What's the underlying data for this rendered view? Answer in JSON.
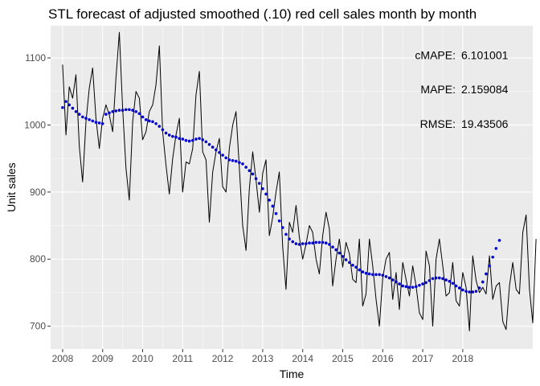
{
  "chart_data": {
    "type": "line",
    "title": "STL forecast of adjusted smoothed (.10) red cell sales month by month",
    "xlabel": "Time",
    "ylabel": "Unit sales",
    "xlim": [
      2007.7,
      2019.75
    ],
    "ylim": [
      666,
      1148
    ],
    "x_ticks": [
      2008,
      2009,
      2010,
      2011,
      2012,
      2013,
      2014,
      2015,
      2016,
      2017,
      2018
    ],
    "y_ticks": [
      700,
      800,
      900,
      1000,
      1100
    ],
    "grid": true,
    "background": "#EBEBEB",
    "annotations": [
      {
        "label": "cMAPE:",
        "value": "6.101001"
      },
      {
        "label": "MAPE:",
        "value": "2.159084"
      },
      {
        "label": "RMSE:",
        "value": "19.43506"
      }
    ],
    "series": [
      {
        "kind": "actual_line",
        "color": "#000000",
        "start": 2008,
        "step": 0.0833333,
        "values": [
          1090,
          985,
          1057,
          1040,
          1075,
          968,
          915,
          1005,
          1055,
          1085,
          1010,
          965,
          1010,
          1030,
          1015,
          990,
          1070,
          1138,
          1025,
          935,
          888,
          1005,
          1050,
          1040,
          978,
          990,
          1020,
          1030,
          1060,
          1118,
          990,
          940,
          897,
          950,
          985,
          1010,
          900,
          945,
          942,
          965,
          1045,
          1080,
          960,
          948,
          855,
          930,
          960,
          980,
          908,
          900,
          965,
          1000,
          1020,
          935,
          850,
          813,
          905,
          960,
          918,
          870,
          928,
          948,
          835,
          862,
          900,
          930,
          818,
          755,
          855,
          840,
          880,
          833,
          800,
          822,
          850,
          840,
          800,
          778,
          835,
          870,
          845,
          760,
          800,
          830,
          788,
          825,
          808,
          770,
          765,
          830,
          730,
          748,
          830,
          790,
          740,
          700,
          772,
          800,
          810,
          740,
          780,
          725,
          795,
          770,
          745,
          790,
          760,
          720,
          710,
          812,
          790,
          700,
          800,
          830,
          790,
          745,
          750,
          795,
          738,
          730,
          780,
          758,
          693,
          805,
          768,
          750,
          758,
          748,
          805,
          740,
          760,
          765,
          707,
          695,
          760,
          795,
          755,
          748,
          840,
          866,
          755,
          705,
          830
        ]
      },
      {
        "kind": "smoothed_points",
        "color": "#0000CC",
        "start": 2008,
        "step": 0.0833333,
        "values": [
          1026,
          1035,
          1030,
          1025,
          1020,
          1016,
          1012,
          1010,
          1008,
          1006,
          1004,
          1003,
          1002,
          1016,
          1018,
          1020,
          1021,
          1022,
          1022,
          1023,
          1023,
          1022,
          1020,
          1017,
          1012,
          1008,
          1006,
          1005,
          1002,
          998,
          993,
          988,
          985,
          983,
          982,
          980,
          979,
          977,
          976,
          977,
          979,
          980,
          978,
          975,
          971,
          967,
          963,
          959,
          955,
          951,
          948,
          947,
          946,
          944,
          942,
          937,
          932,
          927,
          920,
          913,
          905,
          897,
          888,
          879,
          868,
          857,
          847,
          837,
          830,
          826,
          823,
          822,
          823,
          823,
          824,
          824,
          825,
          825,
          825,
          824,
          822,
          818,
          814,
          809,
          804,
          799,
          795,
          791,
          788,
          784,
          781,
          779,
          778,
          777,
          777,
          777,
          776,
          774,
          772,
          769,
          766,
          763,
          760,
          759,
          758,
          758,
          759,
          761,
          763,
          765,
          768,
          771,
          772,
          772,
          771,
          769,
          767,
          764,
          760,
          757,
          754,
          752,
          751,
          751,
          752,
          757,
          766,
          778,
          790,
          803,
          816,
          828
        ]
      }
    ]
  }
}
